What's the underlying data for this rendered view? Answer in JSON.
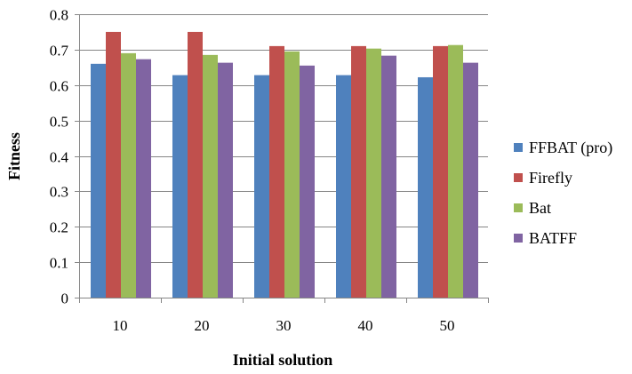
{
  "chart_data": {
    "type": "bar",
    "title": "",
    "xlabel": "Initial solution",
    "ylabel": "Fitness",
    "categories": [
      "10",
      "20",
      "30",
      "40",
      "50"
    ],
    "ylim": [
      0,
      0.8
    ],
    "yticks": [
      "0",
      "0.1",
      "0.2",
      "0.3",
      "0.4",
      "0.5",
      "0.6",
      "0.7",
      "0.8"
    ],
    "grid": true,
    "legend_position": "right",
    "series": [
      {
        "name": "FFBAT (pro)",
        "color": "#4F81BD",
        "values": [
          0.66,
          0.628,
          0.628,
          0.628,
          0.622
        ]
      },
      {
        "name": "Firefly",
        "color": "#C0504D",
        "values": [
          0.75,
          0.75,
          0.71,
          0.71,
          0.71
        ]
      },
      {
        "name": "Bat",
        "color": "#9BBB59",
        "values": [
          0.69,
          0.685,
          0.695,
          0.703,
          0.713
        ]
      },
      {
        "name": "BATFF",
        "color": "#8064A2",
        "values": [
          0.673,
          0.663,
          0.655,
          0.683,
          0.663
        ]
      }
    ]
  }
}
